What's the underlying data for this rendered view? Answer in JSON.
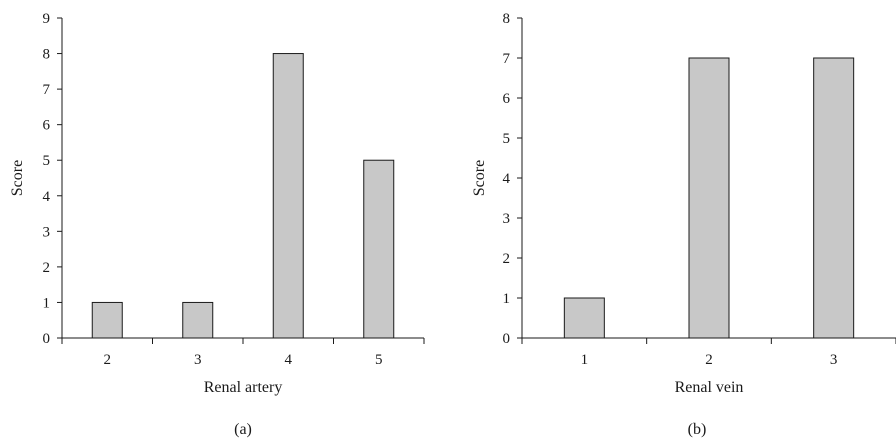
{
  "colors": {
    "bar_fill": "#c8c8c8",
    "bar_stroke": "#1a1a1a",
    "axis": "#1a1a1a",
    "text": "#1a1a1a",
    "background": "#ffffff"
  },
  "chart_data": [
    {
      "type": "bar",
      "panel_label": "(a)",
      "title": "",
      "xlabel": "Renal artery",
      "ylabel": "Score",
      "categories": [
        "2",
        "3",
        "4",
        "5"
      ],
      "values": [
        1,
        1,
        8,
        5
      ],
      "ylim": [
        0,
        9
      ],
      "yticks": [
        0,
        1,
        2,
        3,
        4,
        5,
        6,
        7,
        8,
        9
      ],
      "grid": false,
      "legend": "none"
    },
    {
      "type": "bar",
      "panel_label": "(b)",
      "title": "",
      "xlabel": "Renal vein",
      "ylabel": "Score",
      "categories": [
        "1",
        "2",
        "3"
      ],
      "values": [
        1,
        7,
        7
      ],
      "ylim": [
        0,
        8
      ],
      "yticks": [
        0,
        1,
        2,
        3,
        4,
        5,
        6,
        7,
        8
      ],
      "grid": false,
      "legend": "none"
    }
  ]
}
